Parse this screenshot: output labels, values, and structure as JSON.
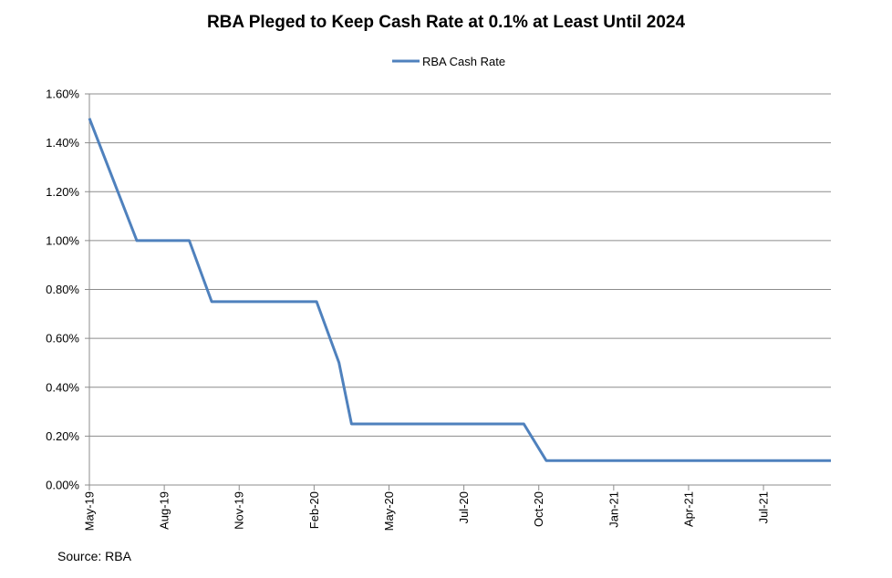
{
  "chart_data": {
    "type": "line",
    "title": "RBA Pleged to Keep Cash Rate at 0.1% at Least Until 2024",
    "legend": [
      "RBA Cash Rate"
    ],
    "legend_position": "top-center",
    "xlabel": "",
    "ylabel": "",
    "ylim": [
      0,
      0.016
    ],
    "y_ticks": [
      0,
      0.002,
      0.004,
      0.006,
      0.008,
      0.01,
      0.012,
      0.014,
      0.016
    ],
    "y_tick_labels": [
      "0.00%",
      "0.20%",
      "0.40%",
      "0.60%",
      "0.80%",
      "1.00%",
      "1.20%",
      "1.40%",
      "1.60%"
    ],
    "grid": true,
    "x_tick_labels": [
      "May-19",
      "Aug-19",
      "Nov-19",
      "Feb-20",
      "May-20",
      "Jul-20",
      "Oct-20",
      "Jan-21",
      "Apr-21",
      "Jul-21"
    ],
    "x_tick_positions": [
      0,
      3,
      6,
      9,
      12,
      15,
      18,
      21,
      24,
      27
    ],
    "x_range": [
      0,
      29.7
    ],
    "series": [
      {
        "name": "RBA Cash Rate",
        "color": "#4F81BD",
        "x": [
          0,
          1.9,
          4.0,
          4.9,
          9.1,
          10.0,
          10.5,
          17.4,
          18.3,
          29.7
        ],
        "values": [
          0.015,
          0.01,
          0.01,
          0.0075,
          0.0075,
          0.005,
          0.0025,
          0.0025,
          0.001,
          0.001
        ]
      }
    ],
    "source": "Source: RBA"
  }
}
